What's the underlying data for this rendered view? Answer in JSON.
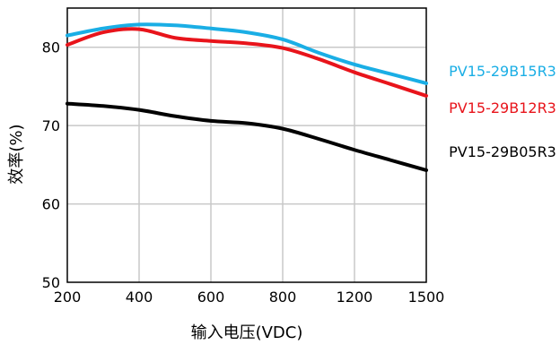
{
  "chart_data": {
    "type": "line",
    "categories": [
      "200",
      "400",
      "600",
      "800",
      "1200",
      "1500"
    ],
    "xlabel": "输入电压(VDC)",
    "ylabel": "效率(%)",
    "ylim": [
      50,
      85
    ],
    "yticks": [
      50,
      60,
      70,
      80
    ],
    "grid": true,
    "legend_placement": "right",
    "series": [
      {
        "name": "PV15-29B15R3",
        "color": "#1aaee5",
        "x": [
          0,
          0.5,
          1,
          1.5,
          2,
          2.5,
          3,
          3.5,
          4,
          4.5,
          5
        ],
        "values": [
          81.5,
          82.4,
          82.9,
          82.8,
          82.4,
          81.9,
          81.0,
          79.3,
          77.8,
          76.6,
          75.4
        ]
      },
      {
        "name": "PV15-29B12R3",
        "color": "#e8141b",
        "x": [
          0,
          0.5,
          1,
          1.5,
          2,
          2.5,
          3,
          3.5,
          4,
          4.5,
          5
        ],
        "values": [
          80.3,
          81.9,
          82.3,
          81.2,
          80.8,
          80.5,
          79.9,
          78.5,
          76.8,
          75.3,
          73.8
        ]
      },
      {
        "name": "PV15-29B05R3",
        "color": "#000000",
        "x": [
          0,
          0.5,
          1,
          1.5,
          2,
          2.5,
          3,
          3.5,
          4,
          4.5,
          5
        ],
        "values": [
          72.8,
          72.5,
          72.0,
          71.2,
          70.6,
          70.3,
          69.6,
          68.3,
          66.9,
          65.6,
          64.3
        ]
      }
    ]
  }
}
